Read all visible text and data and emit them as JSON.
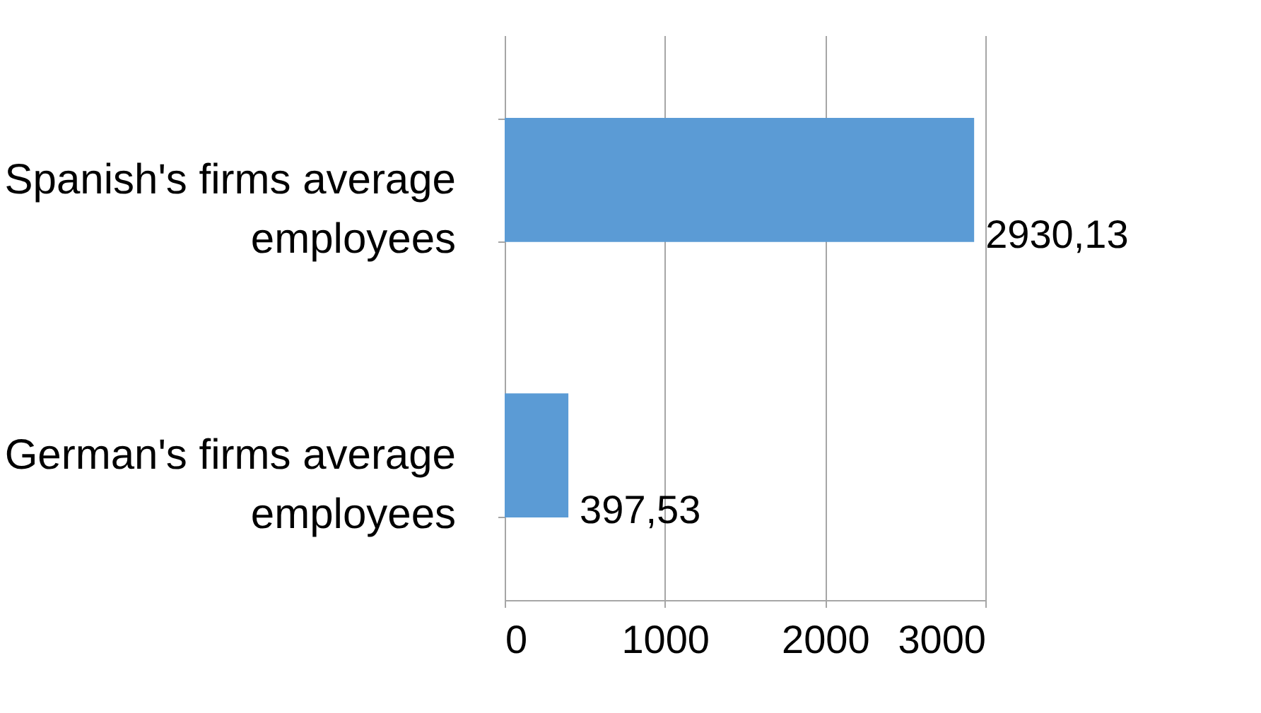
{
  "chart_data": {
    "type": "bar",
    "orientation": "horizontal",
    "categories": [
      "Spanish's firms average employees",
      "German's firms average employees"
    ],
    "values": [
      2930.13,
      397.53
    ],
    "value_labels": [
      "2930,13",
      "397,53"
    ],
    "color": "#5b9bd5",
    "xlim": [
      0,
      3000
    ],
    "xticks": [
      0,
      1000,
      2000,
      3000
    ],
    "grid": "x"
  }
}
